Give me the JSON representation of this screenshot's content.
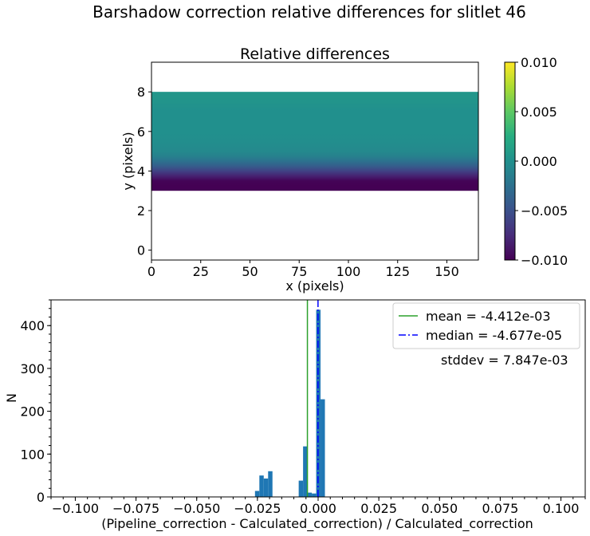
{
  "suptitle": "Barshadow correction relative differences for slitlet 46",
  "chart_data": [
    {
      "type": "heatmap",
      "title": "Relative differences",
      "xlabel": "x (pixels)",
      "ylabel": "y (pixels)",
      "xlim": [
        0,
        166
      ],
      "ylim": [
        -0.5,
        9.5
      ],
      "xticks": [
        0,
        25,
        50,
        75,
        100,
        125,
        150
      ],
      "yticks": [
        0,
        2,
        4,
        6,
        8
      ],
      "data_y_range": [
        3,
        8
      ],
      "row_values": [
        {
          "y": 3.0,
          "value": -0.01
        },
        {
          "y": 3.25,
          "value": -0.01
        },
        {
          "y": 3.5,
          "value": -0.0098
        },
        {
          "y": 3.75,
          "value": -0.008
        },
        {
          "y": 4.0,
          "value": -0.006
        },
        {
          "y": 4.25,
          "value": -0.004
        },
        {
          "y": 4.5,
          "value": -0.0025
        },
        {
          "y": 4.75,
          "value": -0.0012
        },
        {
          "y": 5.0,
          "value": -0.0006
        },
        {
          "y": 5.5,
          "value": -0.0002
        },
        {
          "y": 6.0,
          "value": 0.0
        },
        {
          "y": 7.0,
          "value": 0.0
        },
        {
          "y": 7.5,
          "value": 0.0003
        },
        {
          "y": 8.0,
          "value": 0.0006
        }
      ],
      "colorbar": {
        "colormap": "viridis",
        "range": [
          -0.01,
          0.01
        ],
        "ticks": [
          "0.010",
          "0.005",
          "0.000",
          "−0.005",
          "−0.010"
        ],
        "tick_values": [
          0.01,
          0.005,
          0.0,
          -0.005,
          -0.01
        ]
      }
    },
    {
      "type": "histogram",
      "xlabel": "(Pipeline_correction - Calculated_correction) / Calculated_correction",
      "ylabel": "N",
      "xlim": [
        -0.11,
        0.11
      ],
      "ylim": [
        0,
        460
      ],
      "xticks": [
        "−0.100",
        "−0.075",
        "−0.050",
        "−0.025",
        "0.000",
        "0.025",
        "0.050",
        "0.075",
        "0.100"
      ],
      "xtick_values": [
        -0.1,
        -0.075,
        -0.05,
        -0.025,
        0.0,
        0.025,
        0.05,
        0.075,
        0.1
      ],
      "yticks": [
        0,
        100,
        200,
        300,
        400
      ],
      "bar_color": "#1f77b4",
      "bins": [
        {
          "x0": -0.026,
          "x1": -0.0242,
          "count": 14
        },
        {
          "x0": -0.0242,
          "x1": -0.0224,
          "count": 50
        },
        {
          "x0": -0.0224,
          "x1": -0.0206,
          "count": 43
        },
        {
          "x0": -0.0206,
          "x1": -0.0188,
          "count": 60
        },
        {
          "x0": -0.008,
          "x1": -0.0062,
          "count": 38
        },
        {
          "x0": -0.0062,
          "x1": -0.0044,
          "count": 118
        },
        {
          "x0": -0.0044,
          "x1": -0.0026,
          "count": 10
        },
        {
          "x0": -0.0026,
          "x1": -0.0008,
          "count": 8
        },
        {
          "x0": -0.0008,
          "x1": 0.001,
          "count": 437
        },
        {
          "x0": 0.001,
          "x1": 0.0028,
          "count": 228
        }
      ],
      "mean": {
        "value": -0.004412,
        "label": "mean = -4.412e-03",
        "color": "#2ca02c"
      },
      "median": {
        "value": -4.677e-05,
        "label": "median = -4.677e-05",
        "color": "#0000ff"
      },
      "stddev_label": "stddev = 7.847e-03",
      "legend_position": "upper right"
    }
  ]
}
